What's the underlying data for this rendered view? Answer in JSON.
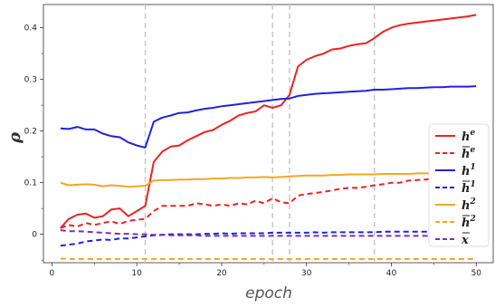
{
  "chart_data": {
    "type": "line",
    "xlabel": "epoch",
    "ylabel": "ρ",
    "xlim": [
      -1,
      52
    ],
    "ylim": [
      -0.055,
      0.445
    ],
    "x_ticks": [
      0,
      10,
      20,
      30,
      40,
      50
    ],
    "y_ticks": [
      0,
      0.1,
      0.2,
      0.3,
      0.4
    ],
    "x_tick_labels": [
      "0",
      "10",
      "20",
      "30",
      "40",
      "50"
    ],
    "y_tick_labels": [
      "0",
      "0.1",
      "0.2",
      "0.3",
      "0.4"
    ],
    "vlines": [
      11,
      26,
      28,
      38
    ],
    "legend": "right",
    "x": [
      1,
      2,
      3,
      4,
      5,
      6,
      7,
      8,
      9,
      10,
      11,
      12,
      13,
      14,
      15,
      16,
      17,
      18,
      19,
      20,
      21,
      22,
      23,
      24,
      25,
      26,
      27,
      28,
      29,
      30,
      31,
      32,
      33,
      34,
      35,
      36,
      37,
      38,
      39,
      40,
      41,
      42,
      43,
      44,
      45,
      46,
      47,
      48,
      49,
      50
    ],
    "series": [
      {
        "name": "h",
        "sup": "e",
        "bar": false,
        "color": "#ee2222",
        "dash": false,
        "values": [
          0.012,
          0.03,
          0.038,
          0.04,
          0.032,
          0.035,
          0.048,
          0.05,
          0.035,
          0.045,
          0.055,
          0.14,
          0.16,
          0.17,
          0.172,
          0.182,
          0.19,
          0.198,
          0.202,
          0.212,
          0.22,
          0.23,
          0.235,
          0.238,
          0.25,
          0.245,
          0.25,
          0.27,
          0.325,
          0.338,
          0.345,
          0.35,
          0.358,
          0.36,
          0.365,
          0.368,
          0.37,
          0.38,
          0.392,
          0.4,
          0.405,
          0.408,
          0.41,
          0.412,
          0.414,
          0.416,
          0.418,
          0.42,
          0.422,
          0.425
        ]
      },
      {
        "name": "h",
        "sup": "e",
        "bar": true,
        "color": "#ee2222",
        "dash": true,
        "values": [
          0.012,
          0.018,
          0.015,
          0.022,
          0.018,
          0.022,
          0.025,
          0.02,
          0.026,
          0.028,
          0.03,
          0.045,
          0.055,
          0.055,
          0.055,
          0.055,
          0.06,
          0.058,
          0.055,
          0.058,
          0.055,
          0.06,
          0.058,
          0.065,
          0.06,
          0.07,
          0.062,
          0.06,
          0.075,
          0.078,
          0.08,
          0.082,
          0.085,
          0.088,
          0.09,
          0.09,
          0.092,
          0.095,
          0.097,
          0.1,
          0.1,
          0.104,
          0.105,
          0.106,
          0.108,
          0.108,
          0.11,
          0.11,
          0.112,
          0.115
        ]
      },
      {
        "name": "h",
        "sup": "1",
        "bar": false,
        "color": "#2222dd",
        "dash": false,
        "values": [
          0.205,
          0.204,
          0.208,
          0.203,
          0.203,
          0.195,
          0.19,
          0.188,
          0.178,
          0.172,
          0.168,
          0.218,
          0.226,
          0.23,
          0.235,
          0.236,
          0.24,
          0.243,
          0.245,
          0.248,
          0.25,
          0.252,
          0.254,
          0.256,
          0.258,
          0.26,
          0.262,
          0.263,
          0.268,
          0.27,
          0.272,
          0.273,
          0.274,
          0.275,
          0.276,
          0.277,
          0.278,
          0.28,
          0.28,
          0.281,
          0.282,
          0.283,
          0.283,
          0.284,
          0.285,
          0.285,
          0.286,
          0.286,
          0.286,
          0.287
        ]
      },
      {
        "name": "h",
        "sup": "1",
        "bar": true,
        "color": "#2222dd",
        "dash": true,
        "values": [
          -0.022,
          -0.02,
          -0.018,
          -0.014,
          -0.012,
          -0.01,
          -0.011,
          -0.008,
          -0.008,
          -0.006,
          -0.004,
          -0.002,
          -0.001,
          0,
          0,
          0,
          0,
          0.001,
          0.001,
          0.002,
          0.001,
          0.002,
          0.002,
          0.002,
          0.002,
          0.003,
          0.003,
          0.003,
          0.003,
          0.003,
          0.004,
          0.003,
          0.004,
          0.004,
          0.004,
          0.004,
          0.004,
          0.004,
          0.005,
          0.005,
          0.005,
          0.005,
          0.005,
          0.005,
          0.005,
          0.005,
          0.005,
          0.006,
          0.006,
          0.006
        ]
      },
      {
        "name": "h",
        "sup": "2",
        "bar": false,
        "color": "#f5a623",
        "dash": false,
        "values": [
          0.1,
          0.095,
          0.096,
          0.097,
          0.096,
          0.093,
          0.095,
          0.094,
          0.092,
          0.093,
          0.094,
          0.104,
          0.105,
          0.105,
          0.106,
          0.106,
          0.107,
          0.107,
          0.108,
          0.108,
          0.109,
          0.109,
          0.11,
          0.11,
          0.111,
          0.11,
          0.111,
          0.112,
          0.113,
          0.114,
          0.114,
          0.114,
          0.115,
          0.115,
          0.116,
          0.116,
          0.116,
          0.116,
          0.117,
          0.117,
          0.117,
          0.117,
          0.118,
          0.118,
          0.118,
          0.118,
          0.118,
          0.119,
          0.119,
          0.119
        ]
      },
      {
        "name": "h",
        "sup": "2",
        "bar": true,
        "color": "#f5a623",
        "dash": true,
        "values": [
          -0.047,
          -0.048,
          -0.048,
          -0.048,
          -0.048,
          -0.048,
          -0.048,
          -0.048,
          -0.048,
          -0.048,
          -0.048,
          -0.048,
          -0.048,
          -0.048,
          -0.048,
          -0.048,
          -0.048,
          -0.048,
          -0.048,
          -0.048,
          -0.048,
          -0.048,
          -0.048,
          -0.048,
          -0.048,
          -0.048,
          -0.048,
          -0.048,
          -0.048,
          -0.048,
          -0.048,
          -0.048,
          -0.048,
          -0.048,
          -0.048,
          -0.048,
          -0.048,
          -0.048,
          -0.048,
          -0.048,
          -0.048,
          -0.048,
          -0.048,
          -0.048,
          -0.048,
          -0.048,
          -0.048,
          -0.048,
          -0.048,
          -0.048
        ]
      },
      {
        "name": "x",
        "sup": "",
        "bar": true,
        "color": "#7733aa",
        "dash": true,
        "values": [
          0.008,
          0.006,
          0.006,
          0.005,
          0.004,
          0.003,
          0.002,
          0.001,
          0.001,
          0,
          0,
          -0.001,
          -0.001,
          -0.002,
          -0.002,
          -0.002,
          -0.002,
          -0.003,
          -0.003,
          -0.003,
          -0.003,
          -0.003,
          -0.003,
          -0.003,
          -0.003,
          -0.003,
          -0.003,
          -0.003,
          -0.003,
          -0.003,
          -0.003,
          -0.003,
          -0.003,
          -0.003,
          -0.003,
          -0.003,
          -0.003,
          -0.003,
          -0.003,
          -0.003,
          -0.003,
          -0.003,
          -0.003,
          -0.003,
          -0.003,
          -0.003,
          -0.003,
          -0.003,
          -0.003,
          -0.003
        ]
      }
    ]
  }
}
